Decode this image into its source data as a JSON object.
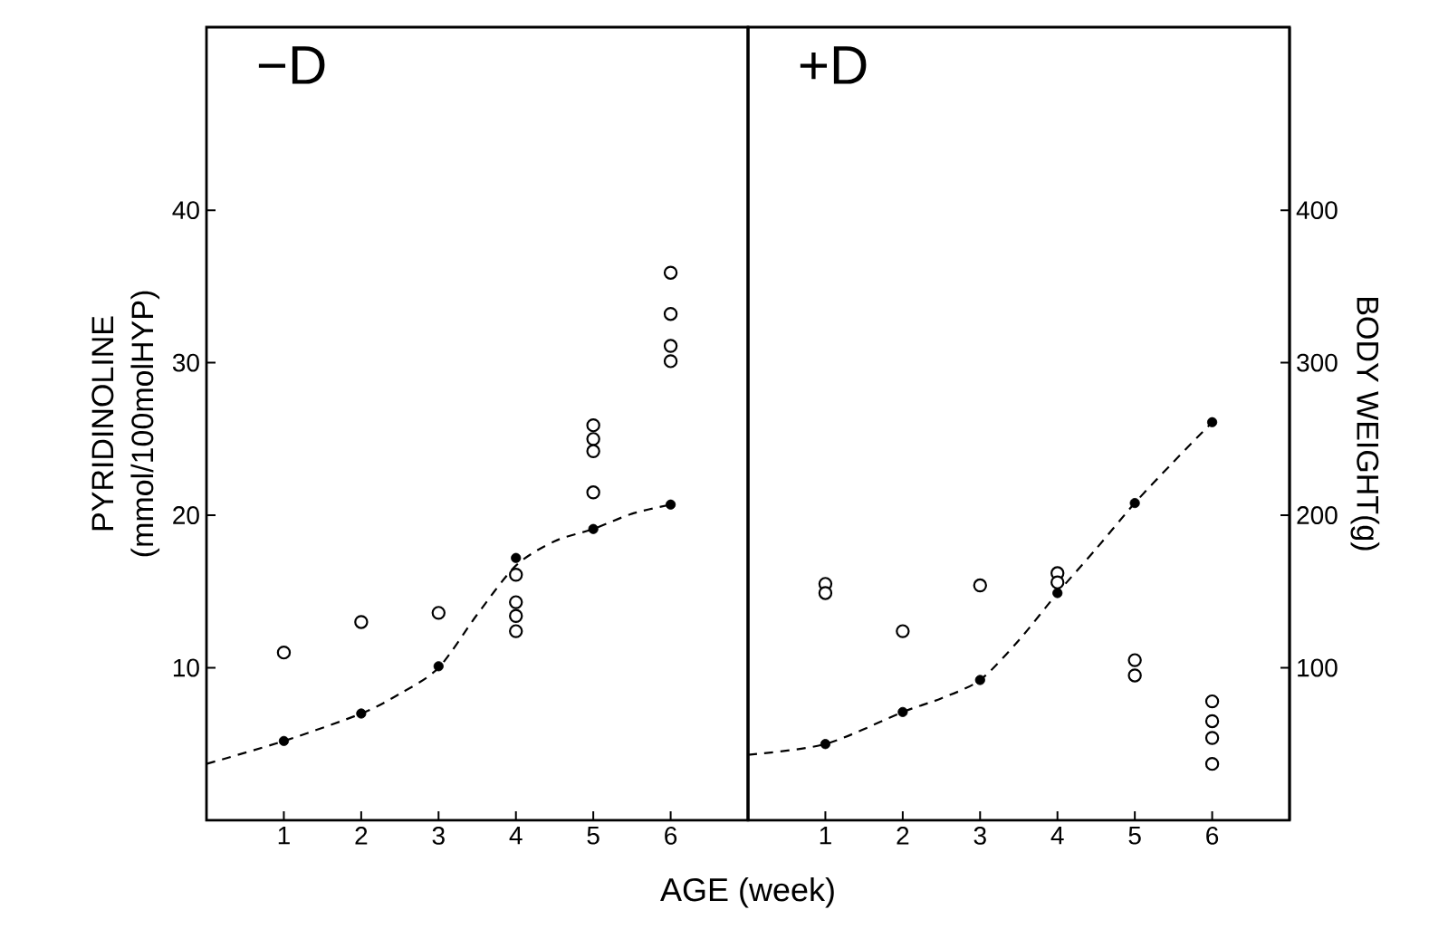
{
  "chart_data": [
    {
      "type": "scatter",
      "title": "−D",
      "xlabel": "AGE (week)",
      "ylabel": "PYRIDINOLINE (mmol/100molHYP)",
      "xlim": [
        0,
        7
      ],
      "xticks": [
        1,
        2,
        3,
        4,
        5,
        6
      ],
      "ylim": [
        0,
        52
      ],
      "yticks": [
        10,
        20,
        30,
        40
      ],
      "y2lim": [
        0,
        520
      ],
      "marker": "circle",
      "series": [
        {
          "color": "#000000",
          "x": [
            1,
            2,
            3,
            4,
            4,
            4,
            4,
            5,
            5,
            5,
            5,
            6,
            6,
            6,
            6
          ],
          "values": [
            11.0,
            13.0,
            13.6,
            16.1,
            14.3,
            13.4,
            12.4,
            25.9,
            25.0,
            24.2,
            21.5,
            35.9,
            33.2,
            31.1,
            30.1
          ]
        },
        {
          "axis": "y2",
          "color": "#000000",
          "x": [
            1,
            2,
            3,
            4,
            5,
            6
          ],
          "values": [
            52,
            70,
            101,
            172,
            191,
            207
          ]
        },
        {
          "type": "line",
          "axis": "y2",
          "color": "#000000",
          "line_style": "dashed",
          "marker": "none",
          "x": [
            0,
            1,
            2,
            2.5,
            3,
            3.5,
            4,
            4.5,
            5,
            5.5,
            6
          ],
          "values": [
            37,
            52,
            70,
            83,
            100,
            135,
            167,
            183,
            191,
            201,
            207
          ]
        }
      ]
    },
    {
      "type": "scatter",
      "title": "+D",
      "y2label": "BODY WEIGHT(g)",
      "xlim": [
        0,
        7
      ],
      "xticks": [
        1,
        2,
        3,
        4,
        5,
        6
      ],
      "ylim": [
        0,
        52
      ],
      "y2lim": [
        0,
        520
      ],
      "y2ticks": [
        100,
        200,
        300,
        400
      ],
      "marker": "circle",
      "series": [
        {
          "color": "#000000",
          "x": [
            1,
            1,
            2,
            3,
            4,
            4,
            5,
            5,
            6,
            6,
            6,
            6
          ],
          "values": [
            15.5,
            14.9,
            12.4,
            15.4,
            16.2,
            15.6,
            10.5,
            9.5,
            7.8,
            6.5,
            5.4,
            3.7
          ]
        },
        {
          "axis": "y2",
          "color": "#000000",
          "x": [
            1,
            2,
            3,
            4,
            5,
            6
          ],
          "values": [
            50,
            71,
            92,
            149,
            208,
            261
          ]
        },
        {
          "type": "line",
          "axis": "y2",
          "color": "#000000",
          "line_style": "dashed",
          "marker": "none",
          "x": [
            0,
            1,
            2,
            2.5,
            3,
            3.5,
            4,
            4.5,
            5,
            5.5,
            6
          ],
          "values": [
            43,
            50,
            71,
            80,
            92,
            118,
            149,
            178,
            208,
            235,
            261
          ]
        }
      ]
    }
  ]
}
